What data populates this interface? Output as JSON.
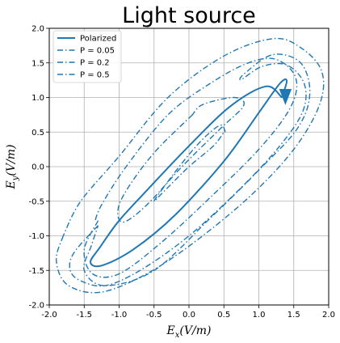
{
  "chart_data": {
    "type": "line",
    "title": "Light source",
    "xlabel": "E_x(V/m)",
    "ylabel": "E_y(V/m)",
    "xlim": [
      -2.0,
      2.0
    ],
    "ylim": [
      -2.0,
      2.0
    ],
    "xticks": [
      "-2.0",
      "-1.5",
      "-1.0",
      "-0.5",
      "0.0",
      "0.5",
      "1.0",
      "1.5",
      "2.0"
    ],
    "yticks": [
      "-2.0",
      "-1.5",
      "-1.0",
      "-0.5",
      "0.0",
      "0.5",
      "1.0",
      "1.5",
      "2.0"
    ],
    "grid": true,
    "legend_position": "top-left",
    "color": "#1f77b4",
    "series": [
      {
        "name": "Polarized",
        "style": "solid",
        "points": [
          [
            1.33,
            1.0
          ],
          [
            1.1,
            1.16
          ],
          [
            0.6,
            0.88
          ],
          [
            0.0,
            0.3
          ],
          [
            -0.6,
            -0.34
          ],
          [
            -1.0,
            -0.78
          ],
          [
            -1.27,
            -1.16
          ],
          [
            -1.41,
            -1.38
          ],
          [
            -1.25,
            -1.43
          ],
          [
            -0.8,
            -1.2
          ],
          [
            -0.2,
            -0.7
          ],
          [
            0.5,
            0.08
          ],
          [
            1.0,
            0.78
          ],
          [
            1.3,
            1.2
          ],
          [
            1.4,
            1.24
          ],
          [
            1.33,
            1.0
          ]
        ]
      },
      {
        "name": "P = 0.05",
        "style": "dashdot",
        "points": [
          [
            0.52,
            0.5
          ],
          [
            0.45,
            0.6
          ],
          [
            0.2,
            0.4
          ],
          [
            -0.1,
            0.05
          ],
          [
            -0.4,
            -0.35
          ],
          [
            -0.5,
            -0.5
          ],
          [
            -0.35,
            -0.35
          ],
          [
            0.0,
            0.0
          ],
          [
            0.35,
            0.3
          ],
          [
            0.5,
            0.5
          ]
        ]
      },
      {
        "name": "P = 0.2",
        "style": "dashdot",
        "points": [
          [
            0.05,
            0.75
          ],
          [
            -0.5,
            0.2
          ],
          [
            -0.9,
            -0.35
          ],
          [
            -1.02,
            -0.65
          ],
          [
            -0.93,
            -0.8
          ],
          [
            -0.6,
            -0.55
          ],
          [
            -0.1,
            0.0
          ],
          [
            0.45,
            0.55
          ],
          [
            0.78,
            0.88
          ],
          [
            0.65,
            1.0
          ],
          [
            0.2,
            0.9
          ],
          [
            0.05,
            0.75
          ]
        ]
      },
      {
        "name": "P = 0.2",
        "style": "dashdot",
        "points": [
          [
            -1.3,
            -0.78
          ],
          [
            -1.5,
            -1.2
          ],
          [
            -1.38,
            -1.55
          ],
          [
            -1.0,
            -1.55
          ],
          [
            -0.4,
            -1.1
          ],
          [
            0.3,
            -0.45
          ],
          [
            1.0,
            0.25
          ],
          [
            1.45,
            0.85
          ],
          [
            1.53,
            1.28
          ],
          [
            1.25,
            1.55
          ],
          [
            0.85,
            1.5
          ],
          [
            0.3,
            1.2
          ],
          [
            -0.3,
            0.75
          ],
          [
            -0.9,
            0.0
          ],
          [
            -1.25,
            -0.55
          ],
          [
            -1.35,
            -0.8
          ]
        ]
      },
      {
        "name": "P = 0.5",
        "style": "dashdot",
        "points": [
          [
            -1.3,
            -0.85
          ],
          [
            -1.65,
            -1.25
          ],
          [
            -1.7,
            -1.5
          ],
          [
            -1.55,
            -1.65
          ],
          [
            -1.2,
            -1.72
          ],
          [
            -0.7,
            -1.5
          ],
          [
            0.0,
            -1.0
          ],
          [
            0.75,
            -0.3
          ],
          [
            1.3,
            0.3
          ],
          [
            1.63,
            0.8
          ],
          [
            1.65,
            1.2
          ],
          [
            1.4,
            1.47
          ],
          [
            1.05,
            1.45
          ],
          [
            0.75,
            1.26
          ],
          [
            0.8,
            1.35
          ],
          [
            1.2,
            1.62
          ],
          [
            1.6,
            1.5
          ],
          [
            1.73,
            1.05
          ],
          [
            1.55,
            0.55
          ],
          [
            1.0,
            -0.05
          ],
          [
            0.3,
            -0.75
          ],
          [
            -0.5,
            -1.5
          ],
          [
            -1.2,
            -1.72
          ],
          [
            -1.5,
            -1.5
          ],
          [
            -1.4,
            -1.15
          ],
          [
            -1.3,
            -0.85
          ]
        ]
      },
      {
        "name": "P = 0.5",
        "style": "dashdot",
        "points": [
          [
            -1.8,
            -1.0
          ],
          [
            -1.9,
            -1.35
          ],
          [
            -1.75,
            -1.7
          ],
          [
            -1.3,
            -1.82
          ],
          [
            -0.7,
            -1.6
          ],
          [
            0.0,
            -1.15
          ],
          [
            0.85,
            -0.45
          ],
          [
            1.5,
            0.25
          ],
          [
            1.87,
            0.9
          ],
          [
            1.9,
            1.38
          ],
          [
            1.6,
            1.72
          ],
          [
            1.2,
            1.85
          ],
          [
            0.5,
            1.6
          ],
          [
            -0.3,
            1.0
          ],
          [
            -1.0,
            0.15
          ],
          [
            -1.55,
            -0.5
          ],
          [
            -1.8,
            -1.0
          ]
        ]
      }
    ],
    "legend": [
      {
        "label": "Polarized",
        "style": "solid"
      },
      {
        "label": "P = 0.05",
        "style": "dashdot"
      },
      {
        "label": "P = 0.2",
        "style": "dashdot"
      },
      {
        "label": "P = 0.5",
        "style": "dashdot"
      }
    ]
  }
}
